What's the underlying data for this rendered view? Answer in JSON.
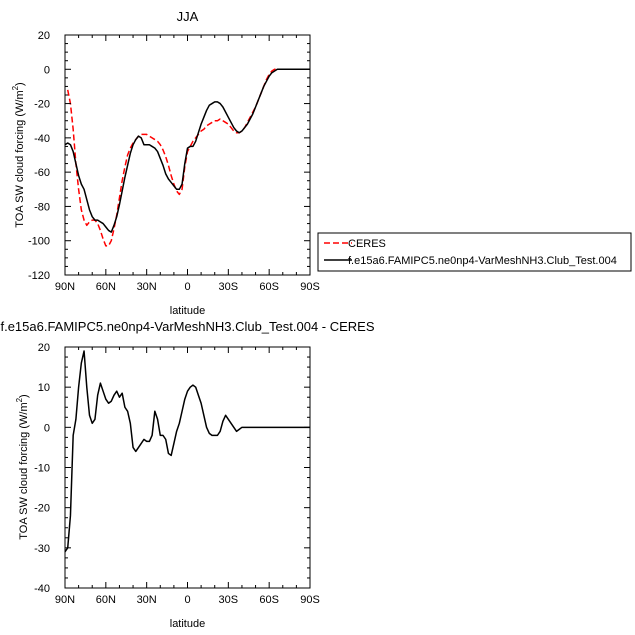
{
  "chart_data": [
    {
      "type": "line",
      "title": "JJA",
      "xlabel": "latitude",
      "ylabel": "TOA SW cloud forcing (W/m",
      "ylabel_sup": "2",
      "ylabel_close": ")",
      "xlim": [
        90,
        -90
      ],
      "ylim": [
        -120,
        20
      ],
      "xticks": [
        {
          "value": 90,
          "label": "90N"
        },
        {
          "value": 60,
          "label": "60N"
        },
        {
          "value": 30,
          "label": "30N"
        },
        {
          "value": 0,
          "label": "0"
        },
        {
          "value": -30,
          "label": "30S"
        },
        {
          "value": -60,
          "label": "60S"
        },
        {
          "value": -90,
          "label": "90S"
        }
      ],
      "yticks": [
        20,
        0,
        -20,
        -40,
        -60,
        -80,
        -100,
        -120
      ],
      "grid": false,
      "legend_position": "right",
      "series": [
        {
          "name": "CERES",
          "color": "#ff0000",
          "dashed": true,
          "points": [
            [
              88,
              -12
            ],
            [
              86,
              -20
            ],
            [
              84,
              -35
            ],
            [
              82,
              -55
            ],
            [
              80,
              -70
            ],
            [
              78,
              -82
            ],
            [
              76,
              -88
            ],
            [
              74,
              -91
            ],
            [
              72,
              -89
            ],
            [
              70,
              -88
            ],
            [
              68,
              -88
            ],
            [
              66,
              -90
            ],
            [
              64,
              -94
            ],
            [
              62,
              -99
            ],
            [
              60,
              -103
            ],
            [
              58,
              -103
            ],
            [
              56,
              -100
            ],
            [
              54,
              -93
            ],
            [
              52,
              -85
            ],
            [
              50,
              -75
            ],
            [
              48,
              -65
            ],
            [
              46,
              -57
            ],
            [
              44,
              -50
            ],
            [
              42,
              -46
            ],
            [
              40,
              -43
            ],
            [
              38,
              -41
            ],
            [
              36,
              -39
            ],
            [
              34,
              -38
            ],
            [
              32,
              -38
            ],
            [
              30,
              -38
            ],
            [
              28,
              -39
            ],
            [
              26,
              -40
            ],
            [
              24,
              -41
            ],
            [
              22,
              -42
            ],
            [
              20,
              -44
            ],
            [
              18,
              -47
            ],
            [
              16,
              -51
            ],
            [
              14,
              -56
            ],
            [
              12,
              -62
            ],
            [
              10,
              -67
            ],
            [
              8,
              -71
            ],
            [
              6,
              -73
            ],
            [
              4,
              -70
            ],
            [
              2,
              -57
            ],
            [
              0,
              -48
            ],
            [
              -2,
              -45
            ],
            [
              -4,
              -42
            ],
            [
              -6,
              -40
            ],
            [
              -8,
              -38
            ],
            [
              -10,
              -36
            ],
            [
              -12,
              -35
            ],
            [
              -14,
              -33
            ],
            [
              -16,
              -32
            ],
            [
              -18,
              -31
            ],
            [
              -20,
              -30
            ],
            [
              -22,
              -30
            ],
            [
              -24,
              -29
            ],
            [
              -26,
              -30
            ],
            [
              -28,
              -31
            ],
            [
              -30,
              -32
            ],
            [
              -32,
              -34
            ],
            [
              -34,
              -36
            ],
            [
              -36,
              -37
            ],
            [
              -38,
              -37
            ],
            [
              -40,
              -36
            ],
            [
              -42,
              -34
            ],
            [
              -44,
              -31
            ],
            [
              -46,
              -28
            ],
            [
              -48,
              -25
            ],
            [
              -50,
              -22
            ],
            [
              -52,
              -18
            ],
            [
              -54,
              -14
            ],
            [
              -56,
              -10
            ],
            [
              -58,
              -6
            ],
            [
              -60,
              -3
            ],
            [
              -62,
              -1
            ],
            [
              -64,
              0
            ],
            [
              -66,
              0
            ],
            [
              -70,
              0
            ],
            [
              -80,
              0
            ],
            [
              -90,
              0
            ]
          ]
        },
        {
          "name": "f.e15a6.FAMIPC5.ne0np4-VarMeshNH3.Club_Test.004",
          "color": "#000000",
          "dashed": false,
          "points": [
            [
              90,
              -44
            ],
            [
              88,
              -43
            ],
            [
              86,
              -44
            ],
            [
              84,
              -48
            ],
            [
              82,
              -55
            ],
            [
              80,
              -62
            ],
            [
              78,
              -67
            ],
            [
              76,
              -70
            ],
            [
              74,
              -76
            ],
            [
              72,
              -82
            ],
            [
              70,
              -86
            ],
            [
              68,
              -88
            ],
            [
              66,
              -88
            ],
            [
              64,
              -89
            ],
            [
              62,
              -90
            ],
            [
              60,
              -92
            ],
            [
              58,
              -94
            ],
            [
              56,
              -95
            ],
            [
              54,
              -91
            ],
            [
              52,
              -86
            ],
            [
              50,
              -79
            ],
            [
              48,
              -71
            ],
            [
              46,
              -63
            ],
            [
              44,
              -56
            ],
            [
              42,
              -49
            ],
            [
              40,
              -44
            ],
            [
              38,
              -41
            ],
            [
              36,
              -39
            ],
            [
              34,
              -40
            ],
            [
              32,
              -44
            ],
            [
              30,
              -44
            ],
            [
              28,
              -44
            ],
            [
              26,
              -45
            ],
            [
              24,
              -46
            ],
            [
              22,
              -48
            ],
            [
              20,
              -52
            ],
            [
              18,
              -56
            ],
            [
              16,
              -61
            ],
            [
              14,
              -64
            ],
            [
              12,
              -66
            ],
            [
              10,
              -68
            ],
            [
              8,
              -70
            ],
            [
              6,
              -70
            ],
            [
              4,
              -67
            ],
            [
              2,
              -55
            ],
            [
              0,
              -46
            ],
            [
              -2,
              -45
            ],
            [
              -4,
              -45
            ],
            [
              -6,
              -42
            ],
            [
              -8,
              -37
            ],
            [
              -10,
              -32
            ],
            [
              -12,
              -28
            ],
            [
              -14,
              -24
            ],
            [
              -16,
              -21
            ],
            [
              -18,
              -20
            ],
            [
              -20,
              -19
            ],
            [
              -22,
              -19
            ],
            [
              -24,
              -20
            ],
            [
              -26,
              -22
            ],
            [
              -28,
              -25
            ],
            [
              -30,
              -28
            ],
            [
              -32,
              -31
            ],
            [
              -34,
              -34
            ],
            [
              -36,
              -36
            ],
            [
              -38,
              -37
            ],
            [
              -40,
              -36
            ],
            [
              -42,
              -34
            ],
            [
              -44,
              -32
            ],
            [
              -46,
              -29
            ],
            [
              -48,
              -26
            ],
            [
              -50,
              -22
            ],
            [
              -52,
              -18
            ],
            [
              -54,
              -14
            ],
            [
              -56,
              -10
            ],
            [
              -58,
              -7
            ],
            [
              -60,
              -4
            ],
            [
              -62,
              -2
            ],
            [
              -64,
              -1
            ],
            [
              -66,
              0
            ],
            [
              -70,
              0
            ],
            [
              -80,
              0
            ],
            [
              -90,
              0
            ]
          ]
        }
      ]
    },
    {
      "type": "line",
      "title": "f.e15a6.FAMIPC5.ne0np4-VarMeshNH3.Club_Test.004 - CERES",
      "xlabel": "latitude",
      "ylabel": "TOA SW cloud forcing (W/m",
      "ylabel_sup": "2",
      "ylabel_close": ")",
      "xlim": [
        90,
        -90
      ],
      "ylim": [
        -40,
        20
      ],
      "xticks": [
        {
          "value": 90,
          "label": "90N"
        },
        {
          "value": 60,
          "label": "60N"
        },
        {
          "value": 30,
          "label": "30N"
        },
        {
          "value": 0,
          "label": "0"
        },
        {
          "value": -30,
          "label": "30S"
        },
        {
          "value": -60,
          "label": "60S"
        },
        {
          "value": -90,
          "label": "90S"
        }
      ],
      "yticks": [
        20,
        10,
        0,
        -10,
        -20,
        -30,
        -40
      ],
      "grid": false,
      "series": [
        {
          "color": "#000000",
          "dashed": false,
          "points": [
            [
              90,
              -31
            ],
            [
              88,
              -30
            ],
            [
              86,
              -22
            ],
            [
              84,
              -2
            ],
            [
              82,
              2
            ],
            [
              80,
              10
            ],
            [
              78,
              16
            ],
            [
              76,
              19
            ],
            [
              74,
              10
            ],
            [
              72,
              3
            ],
            [
              70,
              1
            ],
            [
              68,
              2
            ],
            [
              66,
              8
            ],
            [
              64,
              11
            ],
            [
              62,
              9
            ],
            [
              60,
              7
            ],
            [
              58,
              6
            ],
            [
              56,
              6.5
            ],
            [
              54,
              8
            ],
            [
              52,
              9
            ],
            [
              50,
              7.5
            ],
            [
              48,
              8.5
            ],
            [
              46,
              5
            ],
            [
              44,
              4
            ],
            [
              42,
              1
            ],
            [
              40,
              -5
            ],
            [
              38,
              -6
            ],
            [
              36,
              -5
            ],
            [
              34,
              -4
            ],
            [
              32,
              -3
            ],
            [
              30,
              -3.5
            ],
            [
              28,
              -3.5
            ],
            [
              26,
              -2
            ],
            [
              24,
              4
            ],
            [
              22,
              2
            ],
            [
              20,
              -2
            ],
            [
              18,
              -2
            ],
            [
              16,
              -3
            ],
            [
              14,
              -6.5
            ],
            [
              12,
              -7
            ],
            [
              10,
              -4
            ],
            [
              8,
              -1
            ],
            [
              6,
              1
            ],
            [
              4,
              4
            ],
            [
              2,
              7
            ],
            [
              0,
              9
            ],
            [
              -2,
              10
            ],
            [
              -4,
              10.5
            ],
            [
              -6,
              10
            ],
            [
              -8,
              8
            ],
            [
              -10,
              6
            ],
            [
              -12,
              3
            ],
            [
              -14,
              0
            ],
            [
              -16,
              -1.5
            ],
            [
              -18,
              -2
            ],
            [
              -20,
              -2
            ],
            [
              -22,
              -2
            ],
            [
              -24,
              -1
            ],
            [
              -26,
              1.5
            ],
            [
              -28,
              3
            ],
            [
              -30,
              2
            ],
            [
              -32,
              1
            ],
            [
              -34,
              0
            ],
            [
              -36,
              -1
            ],
            [
              -38,
              -0.5
            ],
            [
              -40,
              0
            ],
            [
              -45,
              0
            ],
            [
              -50,
              0
            ],
            [
              -90,
              0
            ]
          ]
        }
      ]
    }
  ]
}
